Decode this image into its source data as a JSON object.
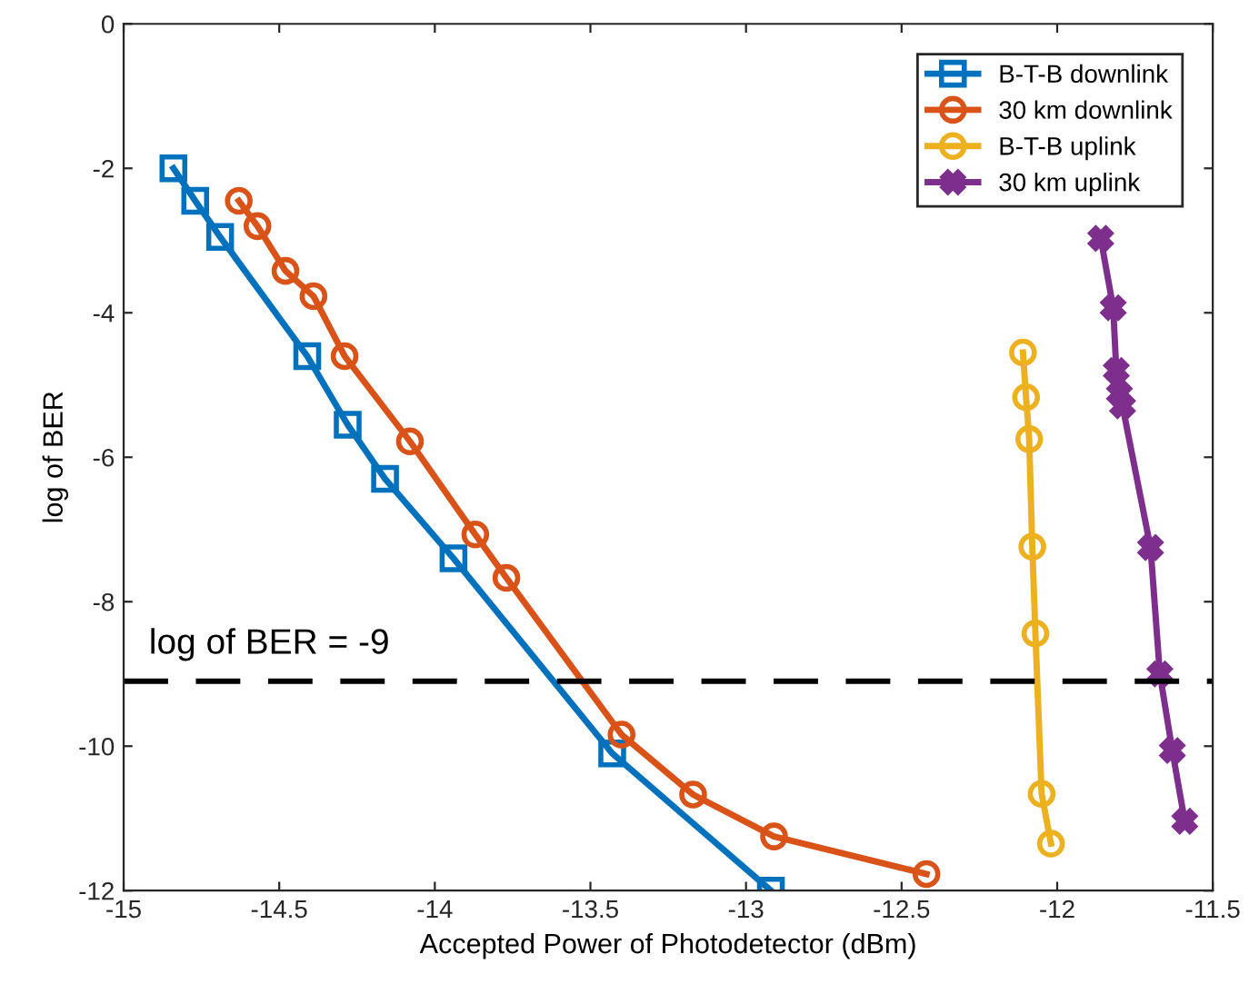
{
  "chart_data": {
    "type": "line",
    "xlabel": "Accepted Power of Photodetector (dBm)",
    "ylabel": "log of BER",
    "xlim": [
      -15,
      -11.5
    ],
    "xticks": [
      -15,
      -14.5,
      -14,
      -13.5,
      -13,
      -12.5,
      -12,
      -11.5
    ],
    "ylim": [
      -12,
      0
    ],
    "yticks": [
      -12,
      -10,
      -8,
      -6,
      -4,
      -2,
      0
    ],
    "grid": false,
    "legend": "top right",
    "line_style": "solid",
    "ref_lines": [
      {
        "axis": "y",
        "value": -9.1,
        "label": "log of BER = -9",
        "color": "#000000",
        "line_style": "dashed"
      }
    ],
    "series": [
      {
        "name": "B-T-B downlink",
        "color": "#0072bd",
        "marker": "square",
        "x": [
          -14.84,
          -14.77,
          -14.69,
          -14.41,
          -14.28,
          -14.16,
          -13.94,
          -13.43,
          -12.92
        ],
        "values": [
          -2.0,
          -2.45,
          -2.95,
          -4.6,
          -5.55,
          -6.3,
          -7.4,
          -10.1,
          -12.0
        ]
      },
      {
        "name": "30 km downlink",
        "color": "#d95319",
        "marker": "circle",
        "x": [
          -14.63,
          -14.57,
          -14.48,
          -14.39,
          -14.29,
          -14.08,
          -13.87,
          -13.77,
          -13.4,
          -13.17,
          -12.91,
          -12.42
        ],
        "values": [
          -2.45,
          -2.8,
          -3.42,
          -3.77,
          -4.6,
          -5.78,
          -7.07,
          -7.67,
          -9.84,
          -10.67,
          -11.25,
          -11.77
        ]
      },
      {
        "name": "B-T-B uplink",
        "color": "#edb120",
        "marker": "circle",
        "x": [
          -12.11,
          -12.1,
          -12.09,
          -12.08,
          -12.07,
          -12.05,
          -12.02
        ],
        "values": [
          -4.55,
          -5.17,
          -5.75,
          -7.24,
          -8.44,
          -10.66,
          -11.35
        ]
      },
      {
        "name": "30 km uplink",
        "color": "#7e2f8e",
        "marker": "cross",
        "x": [
          -11.86,
          -11.82,
          -11.81,
          -11.8,
          -11.79,
          -11.7,
          -11.67,
          -11.63,
          -11.59
        ],
        "values": [
          -2.97,
          -3.93,
          -4.8,
          -5.12,
          -5.29,
          -7.25,
          -9.0,
          -10.06,
          -11.04
        ]
      }
    ]
  }
}
